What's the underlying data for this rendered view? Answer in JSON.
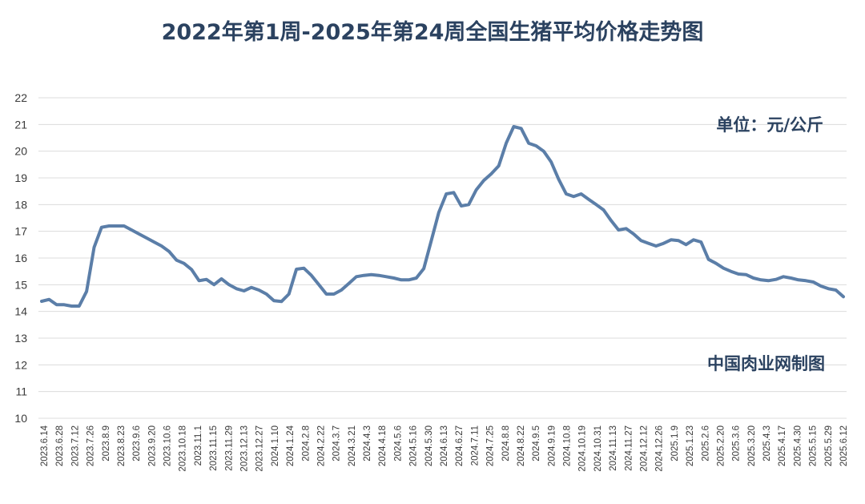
{
  "chart_data": {
    "type": "line",
    "title": "2022年第1周-2025年第24周全国生猪平均价格走势图",
    "annotations": {
      "unit": "单位：元/公斤",
      "source": "中国肉业网制图"
    },
    "ylim": [
      10,
      22
    ],
    "yticks": [
      10,
      11,
      12,
      13,
      14,
      15,
      16,
      17,
      18,
      19,
      20,
      21,
      22
    ],
    "grid": true,
    "legend": "none",
    "line_color": "#5b7ea8",
    "x_tick_labels": [
      "2023.6.14",
      "2023.6.28",
      "2023.7.12",
      "2023.7.26",
      "2023.8.9",
      "2023.8.23",
      "2023.9.6",
      "2023.9.20",
      "2023.10.6",
      "2023.10.18",
      "2023.11.1",
      "2023.11.15",
      "2023.11.29",
      "2023.12.13",
      "2023.12.27",
      "2024.1.10",
      "2024.1.24",
      "2024.2.8",
      "2024.2.22",
      "2024.3.7",
      "2024.3.21",
      "2024.4.3",
      "2024.4.18",
      "2024.5.6",
      "2024.5.16",
      "2024.5.30",
      "2024.6.13",
      "2024.6.27",
      "2024.7.11",
      "2024.7.25",
      "2024.8.8",
      "2024.8.22",
      "2024.9.5",
      "2024.9.19",
      "2024.10.8",
      "2024.10.19",
      "2024.10.31",
      "2024.11.13",
      "2024.11.27",
      "2024.12.12",
      "2024.12.26",
      "2025.1.9",
      "2025.1.23",
      "2025.2.6",
      "2025.2.20",
      "2025.3.6",
      "2025.3.20",
      "2025.4.3",
      "2025.4.17",
      "2025.4.30",
      "2025.5.15",
      "2025.5.29",
      "2025.6.12"
    ],
    "values": [
      14.38,
      14.45,
      14.25,
      14.25,
      14.2,
      14.2,
      14.75,
      16.4,
      17.15,
      17.2,
      17.2,
      17.2,
      17.05,
      16.9,
      16.75,
      16.6,
      16.45,
      16.25,
      15.92,
      15.8,
      15.57,
      15.15,
      15.2,
      15.0,
      15.22,
      15.0,
      14.85,
      14.77,
      14.9,
      14.8,
      14.65,
      14.4,
      14.37,
      14.65,
      15.58,
      15.62,
      15.35,
      15.0,
      14.65,
      14.65,
      14.8,
      15.05,
      15.3,
      15.35,
      15.38,
      15.35,
      15.3,
      15.25,
      15.18,
      15.18,
      15.25,
      15.6,
      16.65,
      17.7,
      18.4,
      18.45,
      17.95,
      18.0,
      18.55,
      18.9,
      19.15,
      19.45,
      20.3,
      20.92,
      20.85,
      20.3,
      20.2,
      20.0,
      19.6,
      18.95,
      18.4,
      18.3,
      18.4,
      18.2,
      18.0,
      17.8,
      17.4,
      17.05,
      17.1,
      16.9,
      16.65,
      16.55,
      16.45,
      16.55,
      16.68,
      16.65,
      16.5,
      16.68,
      16.6,
      15.95,
      15.8,
      15.62,
      15.5,
      15.4,
      15.38,
      15.25,
      15.18,
      15.15,
      15.2,
      15.3,
      15.25,
      15.18,
      15.15,
      15.1,
      14.95,
      14.85,
      14.8,
      14.55
    ]
  }
}
